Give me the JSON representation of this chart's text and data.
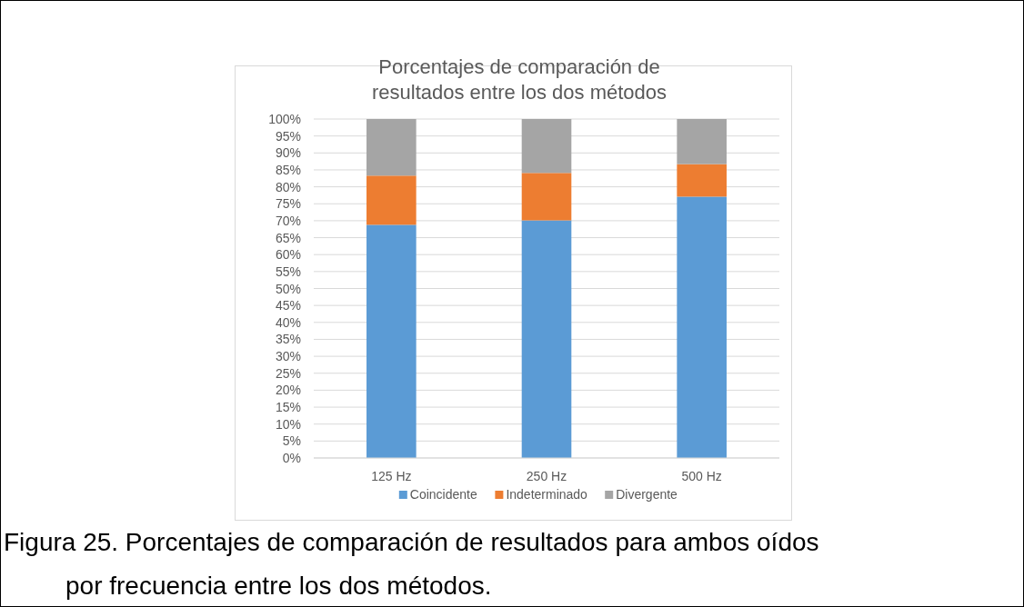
{
  "chart_data": {
    "type": "bar",
    "title": "Porcentajes de comparación de resultados entre los dos métodos",
    "categories": [
      "125 Hz",
      "250 Hz",
      "500 Hz"
    ],
    "stacked": true,
    "series": [
      {
        "name": "Coincidente",
        "color": "#5b9bd5",
        "values": [
          68.8,
          70.1,
          77.1
        ]
      },
      {
        "name": "Indeterminado",
        "color": "#ed7d31",
        "values": [
          14.5,
          14.0,
          9.6
        ]
      },
      {
        "name": "Divergente",
        "color": "#a5a5a5",
        "values": [
          16.7,
          15.9,
          13.3
        ]
      }
    ],
    "ylim": [
      0,
      100
    ],
    "yticks": [
      {
        "value": 0,
        "label": "0%"
      },
      {
        "value": 5,
        "label": "5%"
      },
      {
        "value": 10,
        "label": "10%"
      },
      {
        "value": 15,
        "label": "15%"
      },
      {
        "value": 20,
        "label": "20%"
      },
      {
        "value": 25,
        "label": "25%"
      },
      {
        "value": 30,
        "label": "30%"
      },
      {
        "value": 35,
        "label": "35%"
      },
      {
        "value": 40,
        "label": "40%"
      },
      {
        "value": 45,
        "label": "45%"
      },
      {
        "value": 50,
        "label": "50%"
      },
      {
        "value": 55,
        "label": "55%"
      },
      {
        "value": 60,
        "label": "60%"
      },
      {
        "value": 65,
        "label": "65%"
      },
      {
        "value": 70,
        "label": "70%"
      },
      {
        "value": 75,
        "label": "75%"
      },
      {
        "value": 80,
        "label": "80%"
      },
      {
        "value": 85,
        "label": "85%"
      },
      {
        "value": 90,
        "label": "90%"
      },
      {
        "value": 95,
        "label": "95%"
      },
      {
        "value": 100,
        "label": "100%"
      }
    ],
    "grid": "y",
    "legend": "bottom",
    "annotations": [
      "Figura 25.  Porcentajes de comparación de resultados para ambos oídos por frecuencia entre los dos métodos."
    ]
  }
}
